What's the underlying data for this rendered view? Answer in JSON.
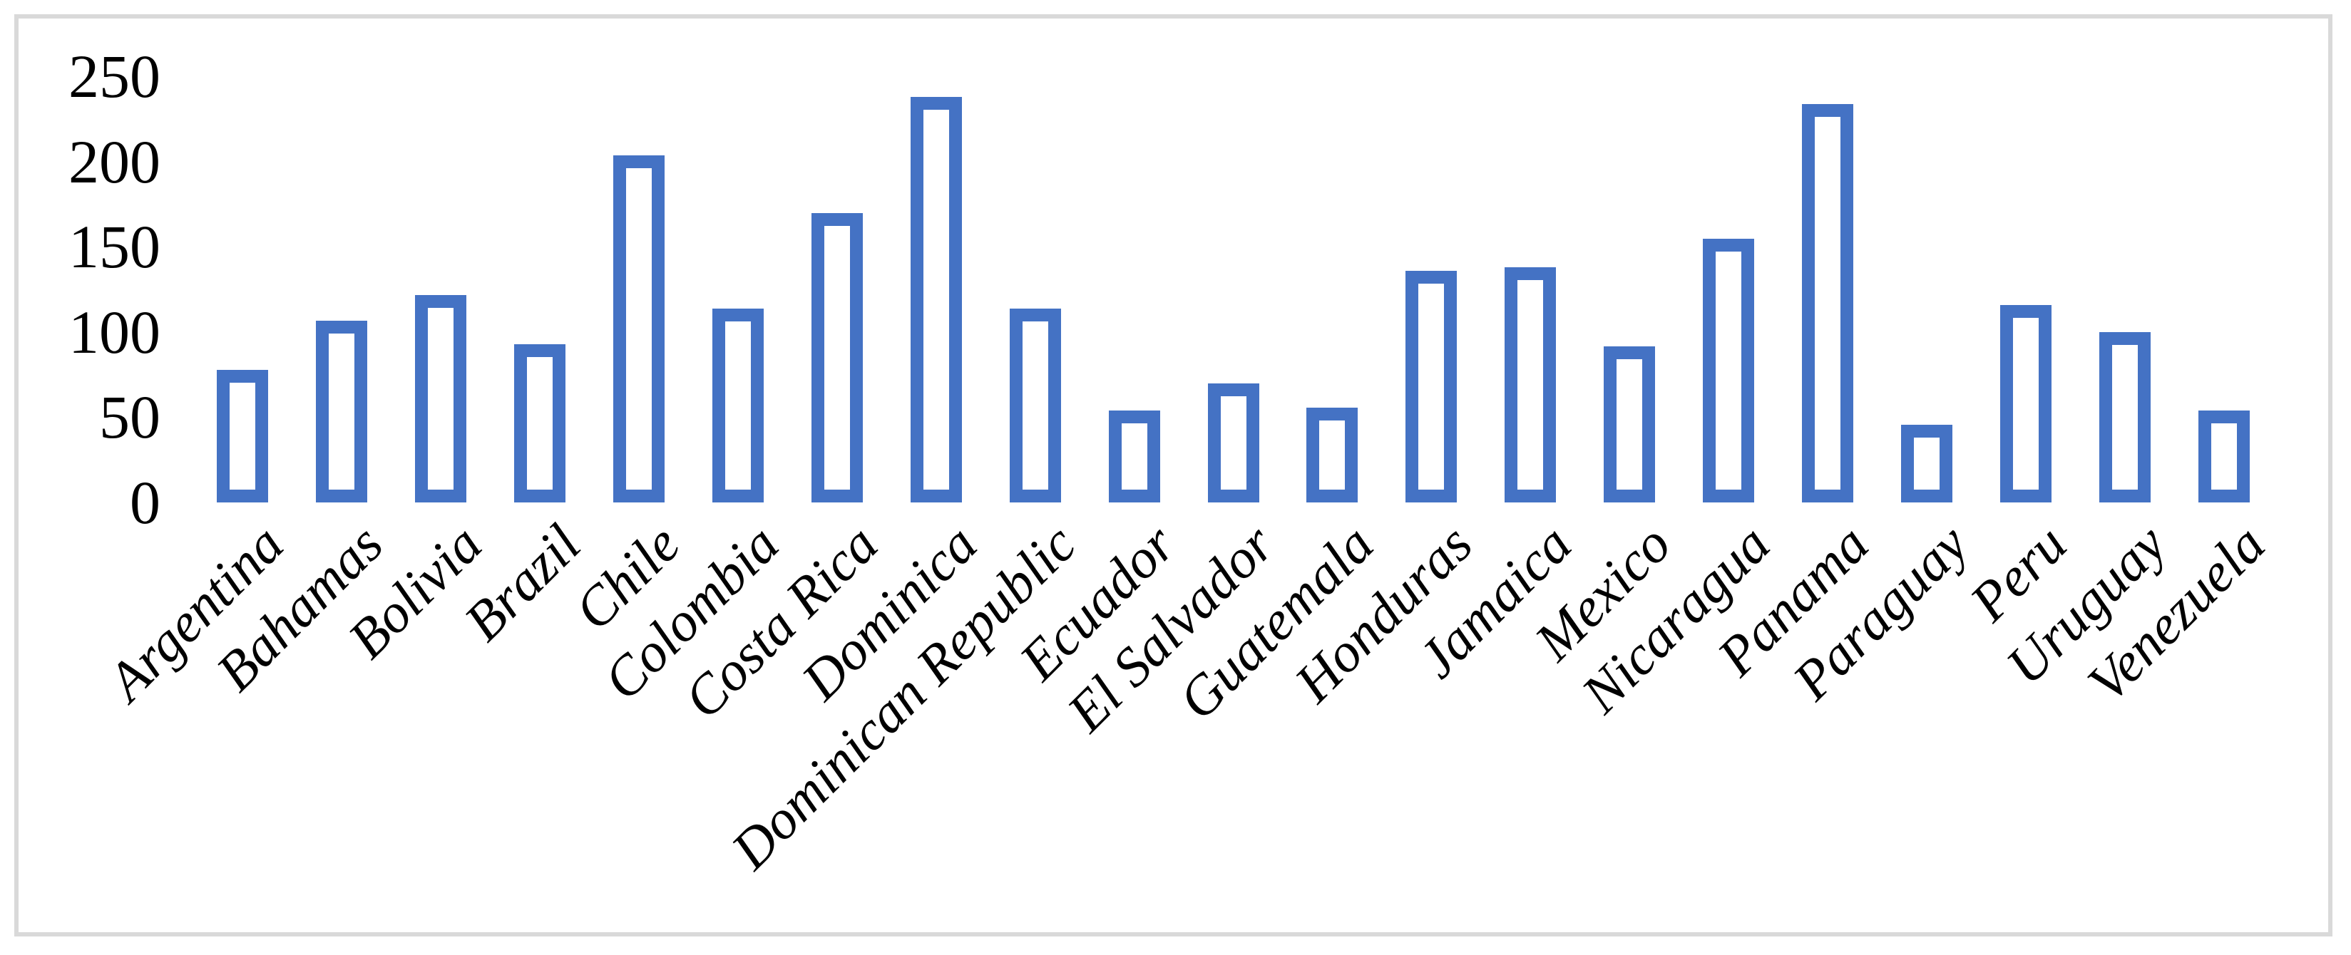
{
  "chart_data": {
    "type": "bar",
    "title": "",
    "xlabel": "",
    "ylabel": "",
    "categories": [
      "Argentina",
      "Bahamas",
      "Bolivia",
      "Brazil",
      "Chile",
      "Colombia",
      "Costa Rica",
      "Dominica",
      "Dominican Republic",
      "Ecuador",
      "El Salvador",
      "Guatemala",
      "Honduras",
      "Jamaica",
      "Mexico",
      "Nicaragua",
      "Panama",
      "Paraguay",
      "Peru",
      "Uruguay",
      "Venezuela"
    ],
    "values": [
      74,
      103,
      118,
      89,
      200,
      110,
      166,
      234,
      110,
      50,
      66,
      52,
      132,
      134,
      88,
      151,
      230,
      42,
      112,
      96,
      50
    ],
    "ylim": [
      0,
      250
    ],
    "yticks": [
      0,
      50,
      100,
      150,
      200,
      250
    ],
    "ytick_labels": [
      "0",
      "50",
      "100",
      "150",
      "200",
      "250"
    ],
    "grid": false,
    "legend": null,
    "colors": {
      "bar_fill": "#FFFFFF",
      "bar_border": "#4472C4",
      "frame_border": "#D9D9D9",
      "background": "#FFFFFF",
      "text": "#000000"
    }
  }
}
